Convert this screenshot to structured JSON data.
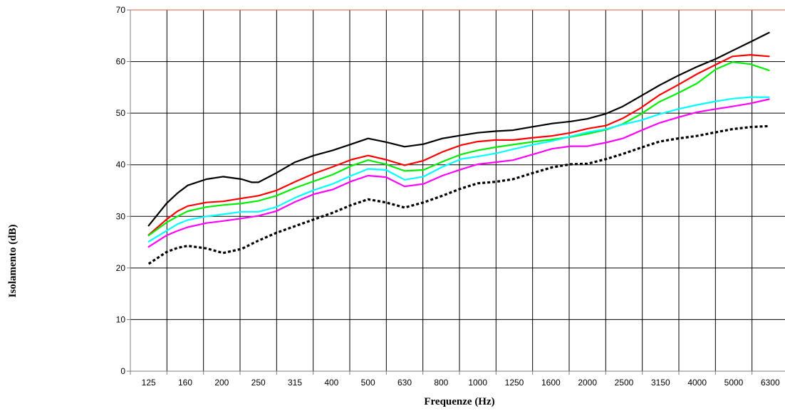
{
  "chart_data": {
    "type": "line",
    "title": "",
    "xlabel": "Frequenze (Hz)",
    "ylabel": "Isolamento (dB)",
    "categories": [
      "125",
      "160",
      "200",
      "250",
      "315",
      "400",
      "500",
      "630",
      "800",
      "1000",
      "1250",
      "1600",
      "2000",
      "2500",
      "3150",
      "4000",
      "5000",
      "6300"
    ],
    "ylim": [
      0,
      70
    ],
    "yticks": [
      "0",
      "10",
      "20",
      "30",
      "40",
      "50",
      "60",
      "70"
    ],
    "grid": true,
    "legend": "none",
    "series": [
      {
        "color": "#000000",
        "style": "solid",
        "x": [
          125,
          140,
          150,
          160,
          180,
          200,
          225,
          240,
          250,
          280,
          315,
          355,
          400,
          450,
          500,
          560,
          630,
          710,
          800,
          900,
          1000,
          1120,
          1250,
          1400,
          1600,
          1800,
          2000,
          2250,
          2500,
          2800,
          3150,
          3550,
          4000,
          4500,
          5000,
          5600,
          6300
        ],
        "values": [
          28.2,
          32.5,
          34.5,
          36.0,
          37.2,
          37.7,
          37.2,
          36.6,
          36.6,
          38.4,
          40.5,
          41.8,
          42.8,
          44.0,
          45.1,
          44.4,
          43.5,
          44.0,
          45.1,
          45.7,
          46.2,
          46.5,
          46.7,
          47.3,
          48.0,
          48.4,
          48.9,
          49.9,
          51.3,
          53.3,
          55.4,
          57.3,
          59.0,
          60.5,
          62.1,
          63.8,
          65.6
        ]
      },
      {
        "color": "#ff0000",
        "style": "solid",
        "x": [
          125,
          140,
          150,
          160,
          180,
          200,
          225,
          250,
          280,
          315,
          355,
          400,
          450,
          500,
          560,
          630,
          710,
          800,
          900,
          1000,
          1120,
          1250,
          1400,
          1600,
          1800,
          2000,
          2250,
          2500,
          2800,
          3150,
          3550,
          4000,
          4500,
          5000,
          5600,
          6300
        ],
        "values": [
          26.4,
          29.4,
          31.0,
          32.0,
          32.7,
          32.9,
          33.5,
          34.0,
          35.0,
          36.7,
          38.3,
          39.6,
          41.0,
          41.8,
          41.0,
          39.9,
          40.8,
          42.5,
          43.8,
          44.5,
          44.8,
          44.8,
          45.2,
          45.6,
          46.2,
          47.0,
          47.6,
          49.0,
          51.0,
          53.5,
          55.5,
          57.6,
          59.4,
          61.0,
          61.3,
          61.0
        ]
      },
      {
        "color": "#00ee00",
        "style": "solid",
        "x": [
          125,
          140,
          150,
          160,
          180,
          200,
          225,
          250,
          280,
          315,
          355,
          400,
          450,
          500,
          560,
          630,
          710,
          800,
          900,
          1000,
          1120,
          1250,
          1400,
          1600,
          1800,
          2000,
          2250,
          2500,
          2800,
          3150,
          3550,
          4000,
          4500,
          5000,
          5600,
          6300
        ],
        "values": [
          26.3,
          28.8,
          30.0,
          31.0,
          31.8,
          32.2,
          32.5,
          33.0,
          34.0,
          35.5,
          36.8,
          38.1,
          39.8,
          40.9,
          40.1,
          38.8,
          39.0,
          40.6,
          42.0,
          42.8,
          43.4,
          43.9,
          44.4,
          44.9,
          45.4,
          46.0,
          46.8,
          47.9,
          49.8,
          52.2,
          53.9,
          55.8,
          58.5,
          59.9,
          59.5,
          58.3
        ]
      },
      {
        "color": "#00ffff",
        "style": "solid",
        "x": [
          125,
          140,
          150,
          160,
          180,
          200,
          225,
          250,
          280,
          315,
          355,
          400,
          450,
          500,
          560,
          630,
          710,
          800,
          900,
          1000,
          1120,
          1250,
          1400,
          1600,
          1800,
          2000,
          2250,
          2500,
          2800,
          3150,
          3550,
          4000,
          4500,
          5000,
          5600,
          6300
        ],
        "values": [
          25.1,
          27.2,
          28.5,
          29.3,
          30.0,
          30.4,
          30.9,
          30.9,
          31.8,
          33.6,
          35.1,
          36.3,
          37.9,
          39.2,
          39.0,
          37.1,
          37.7,
          39.6,
          41.1,
          41.6,
          42.2,
          43.0,
          43.8,
          44.6,
          45.5,
          46.3,
          46.9,
          47.8,
          48.6,
          49.8,
          50.8,
          51.6,
          52.3,
          52.8,
          53.1,
          53.1
        ]
      },
      {
        "color": "#ff00ff",
        "style": "solid",
        "x": [
          125,
          140,
          150,
          160,
          180,
          200,
          225,
          250,
          280,
          315,
          355,
          400,
          450,
          500,
          560,
          630,
          710,
          800,
          900,
          1000,
          1120,
          1250,
          1400,
          1600,
          1800,
          2000,
          2250,
          2500,
          2800,
          3150,
          3550,
          4000,
          4500,
          5000,
          5600,
          6300
        ],
        "values": [
          24.1,
          26.3,
          27.2,
          27.9,
          28.7,
          29.1,
          29.6,
          30.1,
          31.0,
          32.8,
          34.3,
          35.2,
          36.8,
          37.9,
          37.6,
          35.8,
          36.3,
          37.9,
          39.1,
          40.1,
          40.5,
          40.9,
          41.9,
          43.1,
          43.6,
          43.6,
          44.3,
          45.1,
          46.6,
          48.1,
          49.2,
          50.2,
          50.8,
          51.3,
          51.9,
          52.7
        ]
      },
      {
        "color": "#000000",
        "style": "dotted",
        "x": [
          125,
          140,
          150,
          160,
          180,
          200,
          225,
          250,
          280,
          315,
          355,
          400,
          450,
          500,
          560,
          630,
          710,
          800,
          900,
          1000,
          1120,
          1250,
          1400,
          1600,
          1800,
          2000,
          2250,
          2500,
          2800,
          3150,
          3550,
          4000,
          4500,
          5000,
          5600,
          6300
        ],
        "values": [
          20.8,
          23.1,
          23.9,
          24.3,
          23.8,
          22.9,
          23.7,
          25.3,
          26.8,
          28.1,
          29.4,
          30.7,
          32.2,
          33.3,
          32.7,
          31.7,
          32.7,
          34.0,
          35.4,
          36.4,
          36.7,
          37.2,
          38.3,
          39.5,
          40.1,
          40.2,
          41.1,
          42.1,
          43.3,
          44.5,
          45.1,
          45.6,
          46.3,
          46.9,
          47.3,
          47.5
        ]
      }
    ]
  }
}
